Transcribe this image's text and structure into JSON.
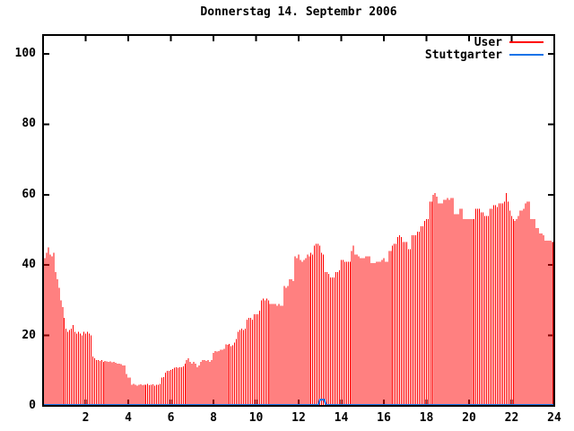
{
  "title": "Donnerstag 14. Septembr 2006",
  "legend": {
    "items": [
      {
        "label": "User",
        "color": "#ff0000"
      },
      {
        "label": "Stuttgarter",
        "color": "#1874e8"
      }
    ]
  },
  "colors": {
    "user_series": "#ff0000",
    "stuttgarter_series": "#1874e8",
    "axis": "#000000",
    "background": "#ffffff"
  },
  "chart_data": {
    "type": "bar",
    "title": "Donnerstag 14. Septembr 2006",
    "xlabel": "",
    "ylabel": "",
    "x_unit": "hour of day",
    "sample_interval_minutes": 5,
    "xlim": [
      0,
      24
    ],
    "ylim": [
      0,
      105
    ],
    "x_ticks": [
      2,
      4,
      6,
      8,
      10,
      12,
      14,
      16,
      18,
      20,
      22,
      24
    ],
    "y_ticks": [
      0,
      20,
      40,
      60,
      80,
      100
    ],
    "grid": false,
    "legend_position": "top-right",
    "series": [
      {
        "name": "User",
        "color": "#ff0000",
        "style": "impulses",
        "start_hour": 0.0833,
        "step_hours": 0.0833,
        "values": [
          42,
          43.5,
          45,
          43,
          42.5,
          43.5,
          38,
          36,
          33.5,
          30,
          28,
          25,
          22,
          21,
          21.5,
          22,
          23,
          21,
          20.5,
          21,
          20.5,
          20,
          21,
          20.5,
          21,
          20.5,
          20,
          14,
          13.5,
          13,
          13,
          12.8,
          13,
          12.5,
          12.8,
          12.6,
          12.5,
          12.6,
          12.4,
          12.5,
          12.3,
          12,
          12,
          11.8,
          11.5,
          11.5,
          9,
          8,
          8,
          6,
          6.2,
          6,
          5.8,
          6,
          6.1,
          5.9,
          6,
          6,
          6.2,
          5.9,
          6,
          6.1,
          5.8,
          6,
          6,
          6.2,
          8,
          8.2,
          9.5,
          10,
          10,
          10.2,
          10.5,
          10.8,
          11,
          10.8,
          11,
          11,
          11.2,
          12,
          13,
          13.5,
          12.5,
          12,
          12.5,
          12,
          11,
          11.5,
          12.5,
          13,
          13,
          12.8,
          13,
          12.5,
          13,
          15,
          15.5,
          15.4,
          15.6,
          16,
          16,
          16.2,
          17.5,
          17.4,
          17.6,
          17,
          17.2,
          18,
          19,
          21,
          21.5,
          22,
          21.5,
          22,
          24.5,
          25,
          25,
          24.5,
          26,
          26,
          26,
          27,
          30,
          30.5,
          30,
          30.5,
          30,
          29,
          29,
          29,
          29,
          28.5,
          29,
          28.5,
          28.5,
          34,
          33.5,
          34,
          36,
          36,
          35.5,
          42.5,
          42,
          43,
          41.5,
          41,
          41.5,
          42,
          43,
          42.5,
          43.5,
          43,
          45.5,
          46,
          46,
          45.5,
          43.5,
          43,
          38,
          38,
          37.5,
          36.5,
          36.5,
          36.5,
          38,
          38,
          38.5,
          41.5,
          41.5,
          41,
          41,
          41,
          41,
          44,
          45.5,
          43,
          43,
          42.5,
          42,
          42,
          42,
          42.5,
          42.5,
          42.5,
          40.5,
          40.5,
          40.5,
          41,
          41,
          41,
          41.5,
          42,
          41,
          41,
          44,
          44,
          45.5,
          46,
          46,
          48,
          48.5,
          48,
          46.5,
          46.5,
          46.5,
          44.5,
          44.5,
          48.5,
          48.5,
          48.5,
          49.5,
          49.5,
          51,
          51,
          52.5,
          53,
          53,
          58,
          58,
          60,
          60.5,
          59.5,
          57.5,
          57.5,
          57.5,
          58.5,
          58.5,
          59,
          58.5,
          59,
          59,
          54.5,
          54.5,
          54.5,
          56,
          56,
          53,
          53,
          53,
          53,
          53,
          53,
          53,
          56,
          56,
          56,
          55,
          55,
          54,
          54,
          54,
          56,
          56,
          57,
          57,
          56.5,
          57.5,
          57.5,
          57.5,
          58,
          60.5,
          58,
          55.5,
          54,
          53,
          52.5,
          53,
          54,
          55.5,
          55.5,
          56,
          57.5,
          58,
          58,
          53,
          53,
          53,
          50.5,
          50.5,
          49,
          49,
          48.5,
          47,
          47,
          47,
          47,
          46.5,
          46.5
        ]
      },
      {
        "name": "Stuttgarter",
        "color": "#1874e8",
        "style": "line",
        "points": [
          [
            0,
            0
          ],
          [
            12.92,
            0
          ],
          [
            13.0,
            1.5
          ],
          [
            13.2,
            1.5
          ],
          [
            13.29,
            0
          ],
          [
            24,
            0
          ]
        ]
      }
    ]
  }
}
